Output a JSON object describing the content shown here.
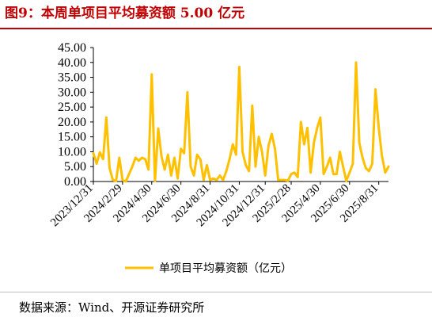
{
  "header": {
    "title": "图9：本周单项目平均募资额 5.00 亿元"
  },
  "footer": {
    "source": "数据来源：Wind、开源证券研究所"
  },
  "colors": {
    "title": "#c00000",
    "series": "#ffc000"
  },
  "chart_data": {
    "type": "line",
    "title": "",
    "xlabel": "",
    "ylabel": "",
    "ylim": [
      0,
      45
    ],
    "y_ticks": [
      "0.00",
      "5.00",
      "10.00",
      "15.00",
      "20.00",
      "25.00",
      "30.00",
      "35.00",
      "40.00",
      "45.00"
    ],
    "x_tick_labels": [
      "2023/12/31",
      "2024/2/29",
      "2024/4/30",
      "2024/6/30",
      "2024/8/31",
      "2024/10/31",
      "2024/12/31",
      "2025/2/28",
      "2025/4/30",
      "2025/6/30",
      "2025/8/31"
    ],
    "x_tick_positions": [
      0,
      9,
      18,
      27,
      36,
      45,
      53,
      61,
      70,
      79,
      88
    ],
    "grid": false,
    "legend": "bottom",
    "series": [
      {
        "name": "单项目平均募资额（亿元）",
        "color": "#ffc000",
        "values": [
          9.5,
          6.0,
          9.8,
          7.5,
          21.5,
          4.5,
          0.5,
          0.2,
          8.0,
          0.5,
          0.0,
          2.5,
          5.0,
          8.0,
          7.0,
          8.0,
          7.5,
          4.0,
          36.0,
          0.2,
          17.8,
          8.5,
          4.0,
          9.0,
          2.0,
          8.0,
          1.0,
          11.0,
          9.5,
          30.0,
          5.0,
          2.0,
          9.0,
          7.5,
          0.5,
          5.5,
          0.5,
          1.0,
          0.5,
          2.0,
          0.5,
          3.5,
          7.5,
          12.5,
          9.0,
          38.5,
          10.0,
          5.5,
          3.5,
          25.5,
          5.0,
          15.0,
          10.0,
          2.0,
          12.0,
          16.0,
          11.0,
          0.5,
          0.5,
          0.5,
          0.3,
          2.5,
          3.0,
          1.5,
          20.0,
          12.5,
          18.0,
          3.0,
          13.0,
          18.0,
          21.5,
          2.5,
          5.0,
          8.0,
          2.5,
          2.5,
          10.0,
          5.0,
          0.2,
          3.0,
          6.0,
          40.0,
          13.0,
          8.0,
          4.5,
          3.5,
          6.0,
          31.0,
          18.0,
          8.5,
          3.0,
          5.0
        ]
      }
    ]
  }
}
